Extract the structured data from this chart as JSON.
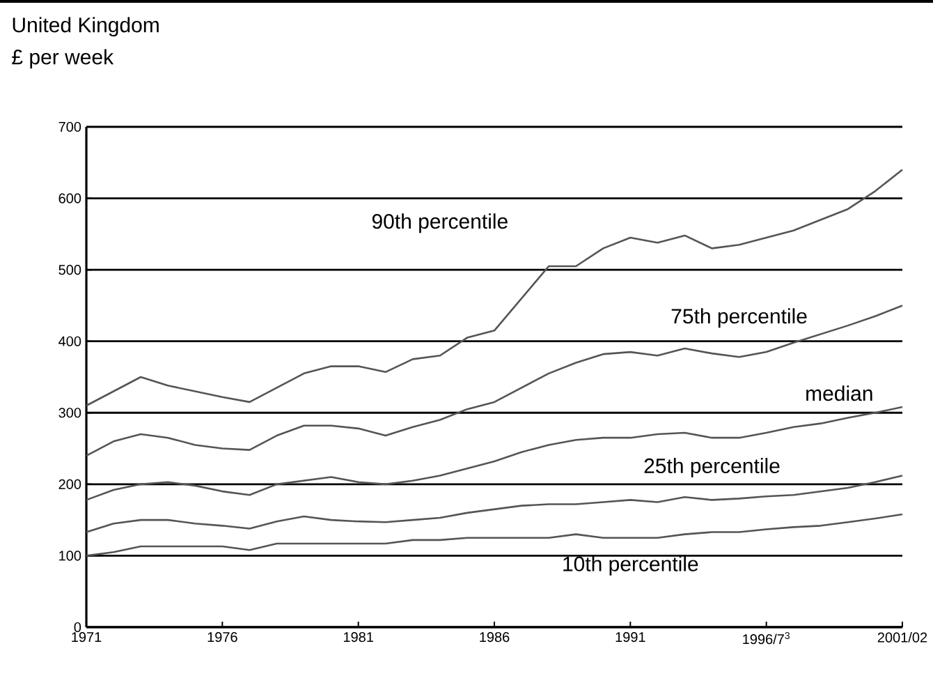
{
  "chart_data": {
    "type": "line",
    "title": "United Kingdom",
    "subtitle": "£ per week",
    "x": [
      1971,
      1972,
      1973,
      1974,
      1975,
      1976,
      1977,
      1978,
      1979,
      1980,
      1981,
      1982,
      1983,
      1984,
      1985,
      1986,
      1987,
      1988,
      1989,
      1990,
      1991,
      1992,
      1993,
      1994,
      1995,
      1996,
      1997,
      1998,
      1999,
      2000,
      2001
    ],
    "series": [
      {
        "name": "90th percentile",
        "color": "#555555",
        "values": [
          310,
          330,
          350,
          338,
          330,
          322,
          315,
          335,
          355,
          365,
          365,
          357,
          375,
          380,
          405,
          415,
          460,
          505,
          505,
          530,
          545,
          538,
          548,
          530,
          535,
          545,
          555,
          570,
          585,
          610,
          640
        ]
      },
      {
        "name": "75th percentile",
        "color": "#555555",
        "values": [
          240,
          260,
          270,
          265,
          255,
          250,
          248,
          268,
          282,
          282,
          278,
          268,
          280,
          290,
          305,
          315,
          335,
          355,
          370,
          382,
          385,
          380,
          390,
          383,
          378,
          385,
          398,
          410,
          422,
          435,
          450
        ]
      },
      {
        "name": "median",
        "color": "#555555",
        "values": [
          178,
          192,
          200,
          203,
          198,
          190,
          185,
          200,
          205,
          210,
          203,
          200,
          205,
          212,
          222,
          232,
          245,
          255,
          262,
          265,
          265,
          270,
          272,
          265,
          265,
          272,
          280,
          285,
          293,
          300,
          308
        ]
      },
      {
        "name": "25th percentile",
        "color": "#555555",
        "values": [
          133,
          145,
          150,
          150,
          145,
          142,
          138,
          148,
          155,
          150,
          148,
          147,
          150,
          153,
          160,
          165,
          170,
          172,
          172,
          175,
          178,
          175,
          182,
          178,
          180,
          183,
          185,
          190,
          195,
          203,
          212
        ]
      },
      {
        "name": "10th percentile",
        "color": "#555555",
        "values": [
          100,
          105,
          113,
          113,
          113,
          113,
          108,
          117,
          117,
          117,
          117,
          117,
          122,
          122,
          125,
          125,
          125,
          125,
          130,
          125,
          125,
          125,
          130,
          133,
          133,
          137,
          140,
          142,
          147,
          152,
          158
        ]
      }
    ],
    "xlim": [
      1971,
      2001
    ],
    "xticks": [
      1971,
      1976,
      1981,
      1986,
      1991,
      {
        "value": 1996,
        "label": "1996/7$^{3}$"
      },
      {
        "value": 2001,
        "label": "2001/02"
      }
    ],
    "ylim": [
      0,
      700
    ],
    "yticks": [
      0,
      100,
      200,
      300,
      400,
      500,
      600,
      700
    ],
    "grid": "y",
    "legend": false,
    "marker": "none",
    "line_style": "solid"
  }
}
